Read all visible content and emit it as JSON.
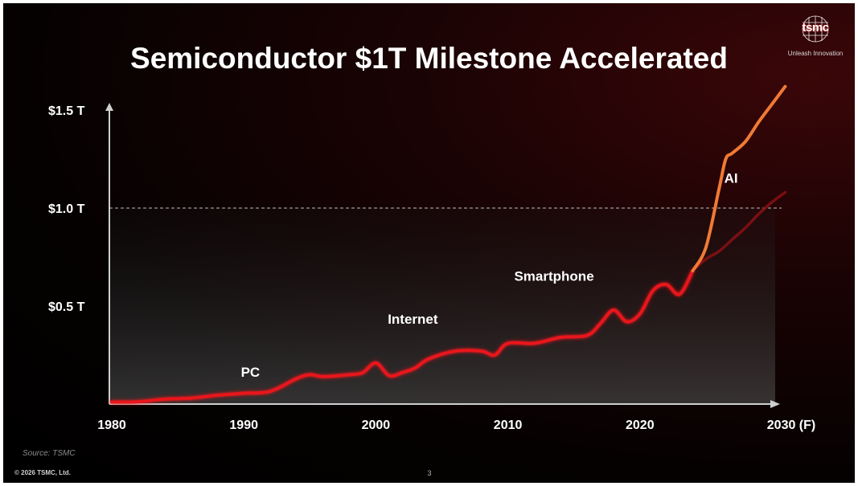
{
  "slide": {
    "title": "Semiconductor $1T Milestone Accelerated",
    "brand": "tsmc",
    "tagline": "Unleash Innovation",
    "source": "Source: TSMC",
    "copyright": "© 2026 TSMC, Ltd.",
    "page_number": "3"
  },
  "colors": {
    "main_line": "#e8161b",
    "ai_line": "#f07a35",
    "baseline_projection": "#8a1014",
    "axis": "#cfcfcf",
    "reference_line": "#bdbdbd"
  },
  "chart_data": {
    "type": "line",
    "title": "Semiconductor $1T Milestone Accelerated",
    "xlabel": "",
    "ylabel": "",
    "xlim": [
      1980,
      2031
    ],
    "ylim": [
      0,
      1.6
    ],
    "x_ticks": [
      {
        "value": 1980,
        "label": "1980"
      },
      {
        "value": 1990,
        "label": "1990"
      },
      {
        "value": 2000,
        "label": "2000"
      },
      {
        "value": 2010,
        "label": "2010"
      },
      {
        "value": 2020,
        "label": "2020"
      },
      {
        "value": 2030,
        "label": "2030 (F)"
      }
    ],
    "y_ticks": [
      {
        "value": 0.5,
        "label": "$0.5 T"
      },
      {
        "value": 1.0,
        "label": "$1.0 T"
      },
      {
        "value": 1.5,
        "label": "$1.5 T"
      }
    ],
    "reference_lines": [
      {
        "value": 1.0,
        "style": "dashed"
      }
    ],
    "grid": false,
    "series": [
      {
        "name": "",
        "x": [
          1980,
          1982,
          1984,
          1986,
          1988,
          1990,
          1992,
          1994,
          1995,
          1996,
          1998,
          1999,
          2000,
          2001,
          2002,
          2003,
          2004,
          2006,
          2008,
          2009,
          2010,
          2012,
          2014,
          2016,
          2017,
          2018,
          2019,
          2020,
          2021,
          2022,
          2023,
          2024
        ],
        "y": [
          0.01,
          0.012,
          0.025,
          0.03,
          0.045,
          0.055,
          0.065,
          0.13,
          0.15,
          0.14,
          0.15,
          0.16,
          0.21,
          0.145,
          0.16,
          0.185,
          0.23,
          0.27,
          0.27,
          0.25,
          0.31,
          0.31,
          0.34,
          0.35,
          0.41,
          0.48,
          0.42,
          0.46,
          0.58,
          0.61,
          0.56,
          0.68
        ]
      },
      {
        "name": "",
        "x": [
          2024,
          2025,
          2026,
          2026.5,
          2027,
          2028,
          2029,
          2030,
          2031
        ],
        "y": [
          0.68,
          0.8,
          1.1,
          1.25,
          1.28,
          1.34,
          1.44,
          1.53,
          1.62
        ]
      },
      {
        "name": "",
        "x": [
          2024,
          2025,
          2026,
          2027,
          2028,
          2029,
          2030,
          2031
        ],
        "y": [
          0.68,
          0.74,
          0.78,
          0.84,
          0.9,
          0.97,
          1.03,
          1.08
        ]
      }
    ],
    "annotations": [
      {
        "text": "PC",
        "x": 1990.5,
        "y": 0.14
      },
      {
        "text": "Internet",
        "x": 2002.8,
        "y": 0.41
      },
      {
        "text": "Smartphone",
        "x": 2013.5,
        "y": 0.63
      },
      {
        "text": "AI",
        "x": 2026.9,
        "y": 1.13
      }
    ]
  }
}
